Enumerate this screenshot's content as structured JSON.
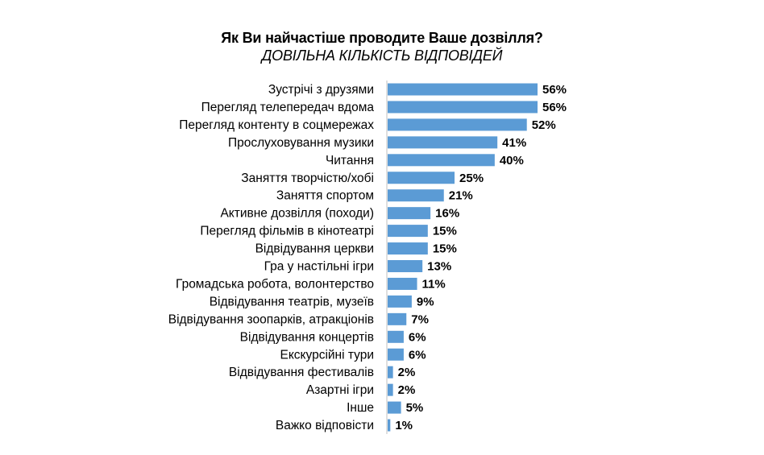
{
  "chart_data": {
    "type": "bar",
    "orientation": "horizontal",
    "title": "Як Ви найчастіше проводите Ваше дозвілля?",
    "subtitle": "ДОВІЛЬНА КІЛЬКІСТЬ ВІДПОВІДЕЙ",
    "categories": [
      "Зустрічі з друзями",
      "Перегляд телепередач вдома",
      "Перегляд контенту в соцмережах",
      "Прослуховування музики",
      "Читання",
      "Заняття творчістю/хобі",
      "Заняття спортом",
      "Активне дозвілля (походи)",
      "Перегляд фільмів в кінотеатрі",
      "Відвідування церкви",
      "Гра у настільні ігри",
      "Громадська робота, волонтерство",
      "Відвідування театрів, музеїв",
      "Відвідування зоопарків, атракціонів",
      "Відвідування концертів",
      "Екскурсійні тури",
      "Відвідування фестивалів",
      "Азартні ігри",
      "Інше",
      "Важко відповісти"
    ],
    "values": [
      56,
      56,
      52,
      41,
      40,
      25,
      21,
      16,
      15,
      15,
      13,
      11,
      9,
      7,
      6,
      6,
      2,
      2,
      5,
      1
    ],
    "value_labels": [
      "56%",
      "56%",
      "52%",
      "41%",
      "40%",
      "25%",
      "21%",
      "16%",
      "15%",
      "15%",
      "13%",
      "11%",
      "9%",
      "7%",
      "6%",
      "6%",
      "2%",
      "2%",
      "5%",
      "1%"
    ],
    "unit": "%",
    "grid": false,
    "legend": "none",
    "bar_color": "#5b9bd5"
  }
}
